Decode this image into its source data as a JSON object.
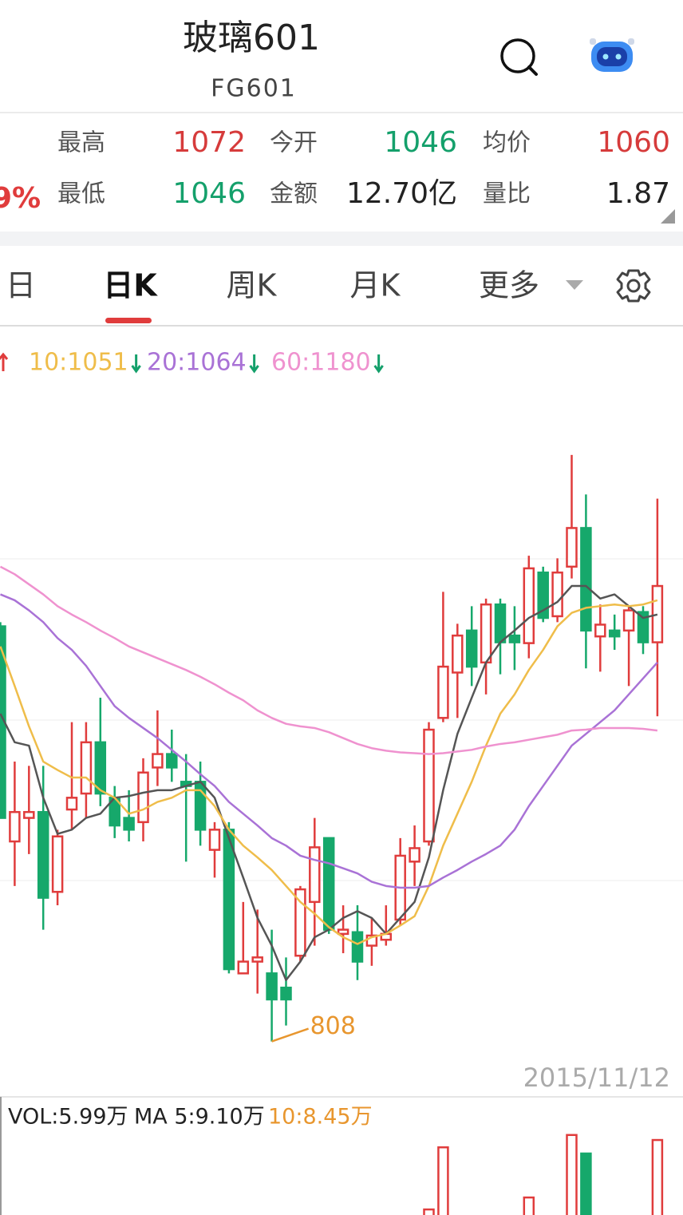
{
  "header": {
    "title": "玻璃601",
    "code": "FG601"
  },
  "stats": {
    "change": "9%",
    "items": [
      {
        "label": "最高",
        "value": 1072,
        "tone": "up"
      },
      {
        "label": "今开",
        "value": 1046,
        "tone": "down"
      },
      {
        "label": "均价",
        "value": 1060,
        "tone": "up"
      },
      {
        "label": "最低",
        "value": 1046,
        "tone": "down"
      },
      {
        "label": "金额",
        "value": "12.70亿",
        "tone": "flat"
      },
      {
        "label": "量比",
        "value": 1.87,
        "tone": "flat"
      }
    ]
  },
  "tabs": [
    "日",
    "日K",
    "周K",
    "月K",
    "更多"
  ],
  "chart_data": {
    "type": "candlestick",
    "up_color": "#e03c3c",
    "down_color": "#16a86b",
    "ylim": [
      800,
      1560
    ],
    "open": [
      1302,
      1046,
      1074,
      1081,
      986,
      1084,
      1103,
      1164,
      1098,
      1074,
      1069,
      1134,
      1150,
      1117,
      1117,
      1036,
      1060,
      889,
      903,
      889,
      872,
      910,
      974,
      1050,
      936,
      938,
      922,
      929,
      953,
      1022,
      1046,
      1193,
      1247,
      1297,
      1259,
      1328,
      1291,
      1282,
      1366,
      1314,
      1373,
      1419,
      1290,
      1297,
      1297,
      1319,
      1283
    ],
    "high": [
      1307,
      1141,
      1136,
      1136,
      1060,
      1188,
      1188,
      1217,
      1112,
      1107,
      1145,
      1202,
      1179,
      1150,
      1141,
      1069,
      1069,
      974,
      965,
      941,
      908,
      993,
      1074,
      1050,
      970,
      970,
      955,
      970,
      1050,
      1065,
      1188,
      1343,
      1305,
      1326,
      1335,
      1335,
      1326,
      1386,
      1373,
      1383,
      1506,
      1459,
      1328,
      1316,
      1326,
      1326,
      1454
    ],
    "low": [
      1074,
      993,
      1031,
      941,
      970,
      1060,
      1074,
      1088,
      1050,
      1046,
      1046,
      1112,
      1117,
      1022,
      1041,
      1003,
      889,
      889,
      865,
      808,
      827,
      903,
      922,
      936,
      913,
      881,
      898,
      922,
      946,
      993,
      1041,
      1188,
      1193,
      1231,
      1221,
      1245,
      1250,
      1264,
      1307,
      1307,
      1359,
      1252,
      1248,
      1274,
      1231,
      1269,
      1195
    ],
    "close": [
      1074,
      1081,
      1081,
      979,
      1052,
      1098,
      1164,
      1103,
      1065,
      1060,
      1128,
      1150,
      1134,
      1112,
      1060,
      1060,
      894,
      903,
      908,
      858,
      858,
      989,
      1039,
      941,
      941,
      903,
      934,
      936,
      1029,
      1038,
      1179,
      1254,
      1291,
      1254,
      1328,
      1283,
      1283,
      1371,
      1312,
      1366,
      1419,
      1297,
      1304,
      1290,
      1321,
      1283,
      1350
    ],
    "series": [
      {
        "color": "#555555",
        "values": [
          1198,
          1164,
          1160,
          1098,
          1055,
          1060,
          1074,
          1079,
          1098,
          1100,
          1104,
          1107,
          1107,
          1112,
          1117,
          1098,
          1050,
          1003,
          955,
          922,
          881,
          903,
          932,
          941,
          955,
          963,
          955,
          936,
          955,
          974,
          1027,
          1107,
          1174,
          1217,
          1259,
          1283,
          1297,
          1312,
          1321,
          1331,
          1350,
          1350,
          1335,
          1340,
          1326,
          1312,
          1316
        ]
      },
      {
        "name": "10:1051",
        "color": "#efbd4a",
        "values": [
          1278,
          1231,
          1183,
          1141,
          1131,
          1122,
          1122,
          1107,
          1098,
          1079,
          1084,
          1093,
          1098,
          1107,
          1107,
          1088,
          1060,
          1041,
          1027,
          1012,
          993,
          974,
          960,
          944,
          932,
          924,
          932,
          936,
          946,
          957,
          993,
          1041,
          1079,
          1117,
          1160,
          1198,
          1221,
          1250,
          1274,
          1302,
          1318,
          1324,
          1326,
          1328,
          1326,
          1328,
          1333
        ]
      },
      {
        "name": "20:1064",
        "color": "#a972d6",
        "values": [
          1340,
          1333,
          1321,
          1307,
          1288,
          1274,
          1255,
          1231,
          1207,
          1193,
          1181,
          1169,
          1155,
          1141,
          1126,
          1112,
          1093,
          1079,
          1065,
          1050,
          1041,
          1029,
          1024,
          1020,
          1014,
          1008,
          998,
          993,
          991,
          991,
          993,
          1003,
          1012,
          1022,
          1031,
          1041,
          1060,
          1088,
          1112,
          1136,
          1160,
          1174,
          1188,
          1202,
          1221,
          1240,
          1259
        ]
      },
      {
        "name": "60:1180",
        "color": "#ef92cf",
        "values": [
          1373,
          1364,
          1352,
          1340,
          1326,
          1316,
          1307,
          1297,
          1288,
          1278,
          1271,
          1264,
          1257,
          1250,
          1242,
          1233,
          1223,
          1214,
          1202,
          1193,
          1186,
          1183,
          1181,
          1176,
          1169,
          1162,
          1157,
          1154,
          1152,
          1151,
          1150,
          1151,
          1153,
          1155,
          1159,
          1162,
          1164,
          1167,
          1170,
          1173,
          1178,
          1179,
          1181,
          1181,
          1181,
          1180,
          1178
        ]
      }
    ],
    "date": "2015/11/12",
    "volume": {
      "label": "VOL:5.99万",
      "ma5": "MA 5:9.10万",
      "ma10": "10:8.45万",
      "ylim": [
        0,
        30
      ],
      "values": [
        6,
        6,
        6,
        6,
        6,
        6,
        6,
        6,
        6,
        6,
        6,
        6,
        6,
        6,
        6,
        6,
        6,
        6,
        6,
        6,
        6,
        6,
        6,
        6,
        6,
        6,
        6,
        6,
        6,
        6,
        9.3,
        25.4,
        6,
        6,
        6,
        6,
        6,
        12.4,
        6,
        6,
        28.6,
        23.8,
        6,
        6,
        6,
        6,
        27.3
      ]
    }
  }
}
